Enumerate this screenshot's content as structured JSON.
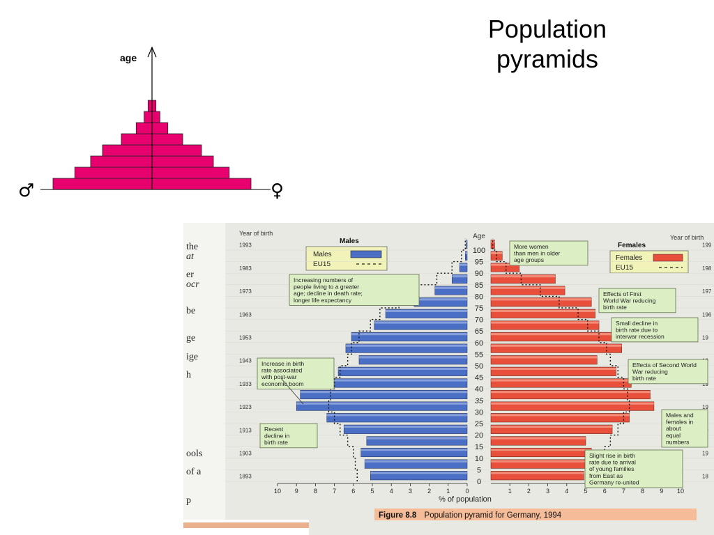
{
  "slide": {
    "title_line1": "Population",
    "title_line2": "pyramids"
  },
  "schematic": {
    "axis_label": "age",
    "male_symbol": "♂",
    "female_symbol": "♀",
    "bar_color": "#e8006f",
    "rows_bottom_to_top": [
      100,
      78,
      62,
      50,
      31,
      16,
      8,
      4
    ]
  },
  "germany_chart": {
    "header_left": "Year of birth",
    "header_center": "Age",
    "header_right": "Year of birth",
    "males_label": "Males",
    "females_label": "Females",
    "legend_males": "Males",
    "legend_females": "Females",
    "legend_eu15": "EU15",
    "x_axis_label": "% of population",
    "caption_figure": "Figure 8.8",
    "caption_text": "Population pyramid for Germany, 1994",
    "male_color": "#4a6fc4",
    "female_color": "#e8503c",
    "birth_years_left": [
      "1893",
      "1903",
      "1913",
      "1923",
      "1933",
      "1943",
      "1953",
      "1963",
      "1973",
      "1983",
      "1993"
    ],
    "birth_years_right": [
      "18",
      "19",
      "19",
      "19",
      "19",
      "19",
      "19",
      "196",
      "197",
      "198",
      "199"
    ],
    "annotations": [
      {
        "id": "more-women",
        "text": [
          "More women",
          "than men in older",
          "age groups"
        ]
      },
      {
        "id": "life-expectancy",
        "text": [
          "Increasing numbers of",
          "people living to a greater",
          "age; decline in death rate;",
          "longer life expectancy"
        ]
      },
      {
        "id": "first-world-war",
        "text": [
          "Effects of First",
          "World War reducing",
          "birth rate"
        ]
      },
      {
        "id": "interwar",
        "text": [
          "Small decline in",
          "birth rate due to",
          "interwar recession"
        ]
      },
      {
        "id": "baby-boom",
        "text": [
          "Increase in birth",
          "rate associated",
          "with post-war",
          "economic boom"
        ]
      },
      {
        "id": "second-world-war",
        "text": [
          "Effects of Second World",
          "War reducing",
          "birth rate"
        ]
      },
      {
        "id": "recent-decline",
        "text": [
          "Recent",
          "decline in",
          "birth rate"
        ]
      },
      {
        "id": "equal-numbers",
        "text": [
          "Males and",
          "females in",
          "about",
          "equal",
          "numbers"
        ]
      },
      {
        "id": "slight-rise",
        "text": [
          "Slight rise in birth",
          "rate due to arrival",
          "of young families",
          "from East as",
          "Germany re-united"
        ]
      }
    ],
    "margin_text": [
      "the",
      "at",
      "er",
      "ocr",
      "be",
      "ge",
      "ige",
      "h",
      "ools",
      "of a",
      "p"
    ]
  },
  "chart_data": {
    "type": "bar",
    "orientation": "horizontal",
    "x_label": "% of population",
    "y_label": "Age",
    "categories": [
      "0",
      "5",
      "10",
      "15",
      "20",
      "25",
      "30",
      "35",
      "40",
      "45",
      "50",
      "55",
      "60",
      "65",
      "70",
      "75",
      "80",
      "85",
      "90",
      "95",
      "100"
    ],
    "y_tick_labels": [
      "0",
      "5",
      "10",
      "15",
      "20",
      "25",
      "30",
      "35",
      "40",
      "45",
      "50",
      "55",
      "60",
      "65",
      "70",
      "75",
      "80",
      "85",
      "90",
      "95",
      "100"
    ],
    "x_tick_labels": [
      "10",
      "9",
      "8",
      "7",
      "6",
      "5",
      "4",
      "3",
      "2",
      "1",
      "0",
      "1",
      "2",
      "3",
      "4",
      "5",
      "6",
      "7",
      "8",
      "9",
      "10"
    ],
    "x_range": [
      -10,
      10
    ],
    "series": [
      {
        "name": "Males",
        "values": [
          5.1,
          5.4,
          5.6,
          5.3,
          6.5,
          7.4,
          9.0,
          8.8,
          7.5,
          6.8,
          5.7,
          6.4,
          6.1,
          4.9,
          4.3,
          2.8,
          1.7,
          0.8,
          0.4,
          0.1,
          0.05
        ]
      },
      {
        "name": "Females",
        "values": [
          4.9,
          5.1,
          5.3,
          5.0,
          6.4,
          7.3,
          8.6,
          8.4,
          7.4,
          6.6,
          5.6,
          6.9,
          7.1,
          5.7,
          5.5,
          5.3,
          3.9,
          3.4,
          1.5,
          0.6,
          0.2
        ]
      },
      {
        "name": "EU15",
        "values": [
          5.8,
          5.9,
          6.0,
          6.3,
          6.7,
          7.0,
          7.3,
          7.2,
          7.0,
          6.7,
          6.3,
          6.1,
          5.7,
          5.1,
          4.6,
          3.6,
          2.6,
          1.6,
          0.8,
          0.3,
          0.1
        ]
      }
    ]
  }
}
